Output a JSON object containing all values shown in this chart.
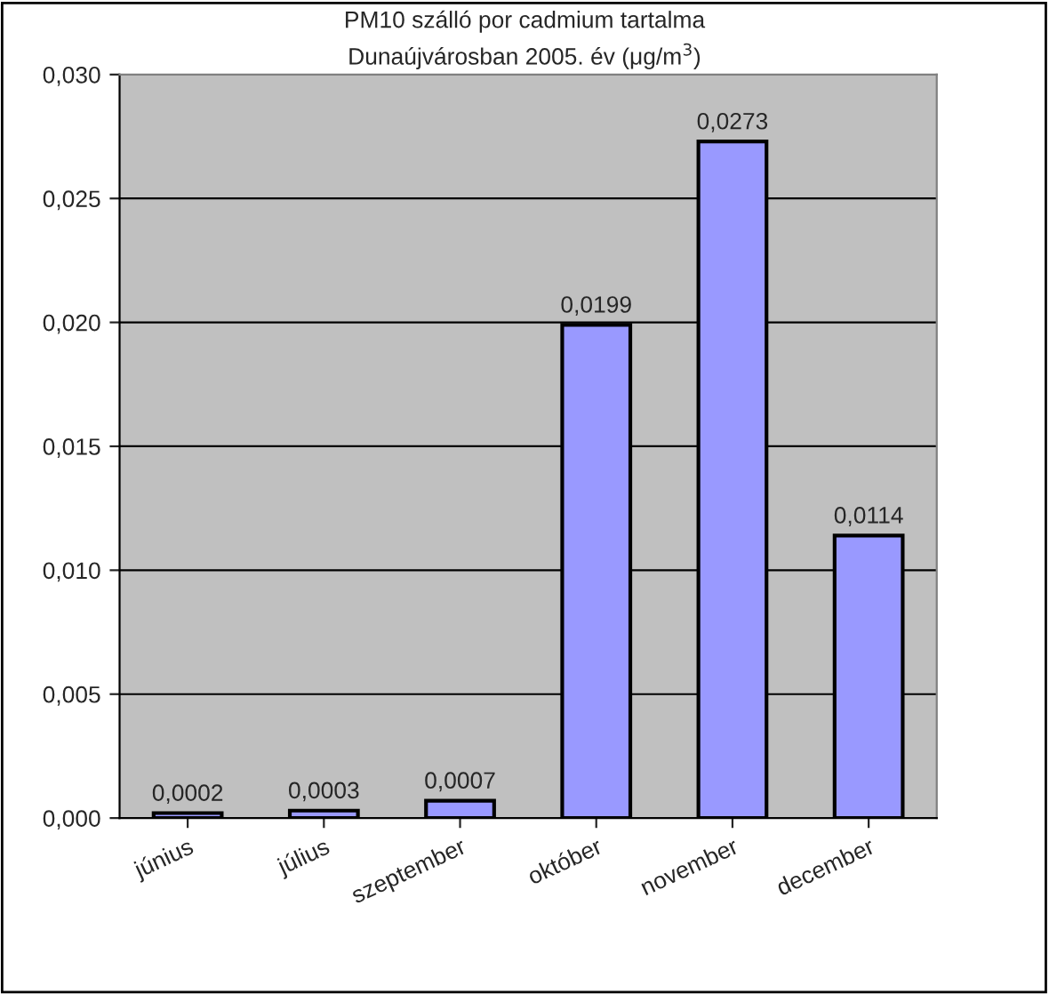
{
  "chart_data": {
    "type": "bar",
    "title": "PM10 szálló por cadmium tartalma\nDunaújvárosban 2005. év (μg/m$^{3}$)",
    "categories": [
      "június",
      "július",
      "szeptember",
      "október",
      "november",
      "december"
    ],
    "values": [
      0.0002,
      0.0003,
      0.0007,
      0.0199,
      0.0273,
      0.0114
    ],
    "value_labels": [
      "0,0002",
      "0,0003",
      "0,0007",
      "0,0199",
      "0,0273",
      "0,0114"
    ],
    "color": "#9999ff",
    "ylim": [
      0,
      0.03
    ],
    "yticks": [
      {
        "value": 0,
        "label": "0,000"
      },
      {
        "value": 0.005,
        "label": "0,005"
      },
      {
        "value": 0.01,
        "label": "0,010"
      },
      {
        "value": 0.015,
        "label": "0,015"
      },
      {
        "value": 0.02,
        "label": "0,020"
      },
      {
        "value": 0.025,
        "label": "0,025"
      },
      {
        "value": 0.03,
        "label": "0,030"
      }
    ],
    "grid": "y",
    "legend": false
  }
}
